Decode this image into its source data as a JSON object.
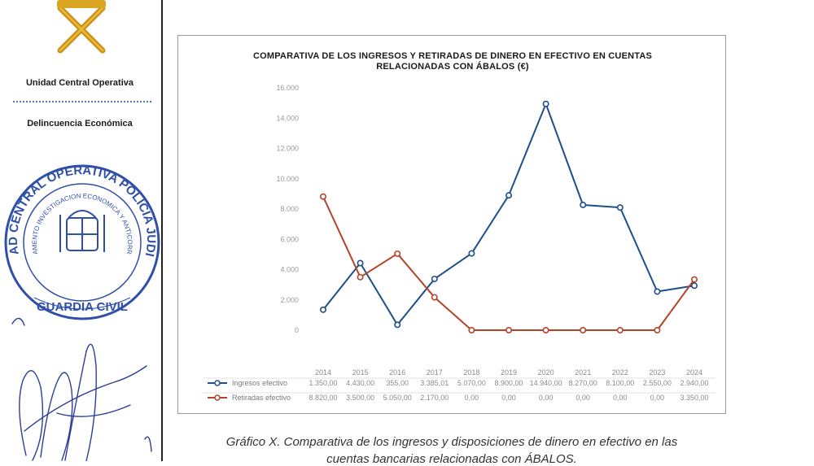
{
  "sidebar": {
    "unit_title": "Unidad Central Operativa",
    "unit_subtitle": "Delincuencia Económica",
    "stamp_text_outer": "UNIDAD CENTRAL OPERATIVA POLICIA JUDICIAL",
    "stamp_text_inner": "DEPARTAMENTO INVESTIGACION ECONOMICA Y ANTICORRUPCION",
    "stamp_text_bottom": "GUARDIA CIVIL",
    "stamp_color": "#2f4fa8",
    "logo_color": "#d9a520"
  },
  "chart_data": {
    "type": "line",
    "title_lines": [
      "COMPARATIVA DE LOS INGRESOS Y RETIRADAS DE DINERO EN EFECTIVO EN CUENTAS",
      "RELACIONADAS CON ÁBALOS (€)"
    ],
    "categories": [
      "2014",
      "2015",
      "2016",
      "2017",
      "2018",
      "2019",
      "2020",
      "2021",
      "2022",
      "2023",
      "2024"
    ],
    "ylim": [
      0,
      16000
    ],
    "yticks": [
      "0",
      "2.000",
      "4.000",
      "6.000",
      "8.000",
      "10.000",
      "12.000",
      "14.000",
      "16.000"
    ],
    "ytick_values": [
      0,
      2000,
      4000,
      6000,
      8000,
      10000,
      12000,
      14000,
      16000
    ],
    "grid": false,
    "legend_position": "data-table-bottom",
    "series": [
      {
        "name": "Ingresos efectivo",
        "color": "#1f4e8c",
        "values": [
          1350,
          4430,
          355,
          3385.01,
          5070,
          8900,
          14940,
          8270,
          8100,
          2550,
          2940
        ],
        "labels": [
          "1.350,00",
          "4.430,00",
          "355,00",
          "3.385,01",
          "5.070,00",
          "8.900,00",
          "14.940,00",
          "8.270,00",
          "8.100,00",
          "2.550,00",
          "2.940,00"
        ]
      },
      {
        "name": "Retiradas efectivo",
        "color": "#b5432a",
        "values": [
          8820,
          3500,
          5050,
          2170,
          0,
          0,
          0,
          0,
          0,
          0,
          3350
        ],
        "labels": [
          "8.820,00",
          "3.500,00",
          "5.050,00",
          "2.170,00",
          "0,00",
          "0,00",
          "0,00",
          "0,00",
          "0,00",
          "0,00",
          "3.350,00"
        ]
      }
    ]
  },
  "caption": {
    "line1": "Gráfico X. Comparativa de los ingresos y disposiciones de dinero en efectivo en las",
    "line2": "cuentas bancarias relacionadas con ÁBALOS."
  }
}
